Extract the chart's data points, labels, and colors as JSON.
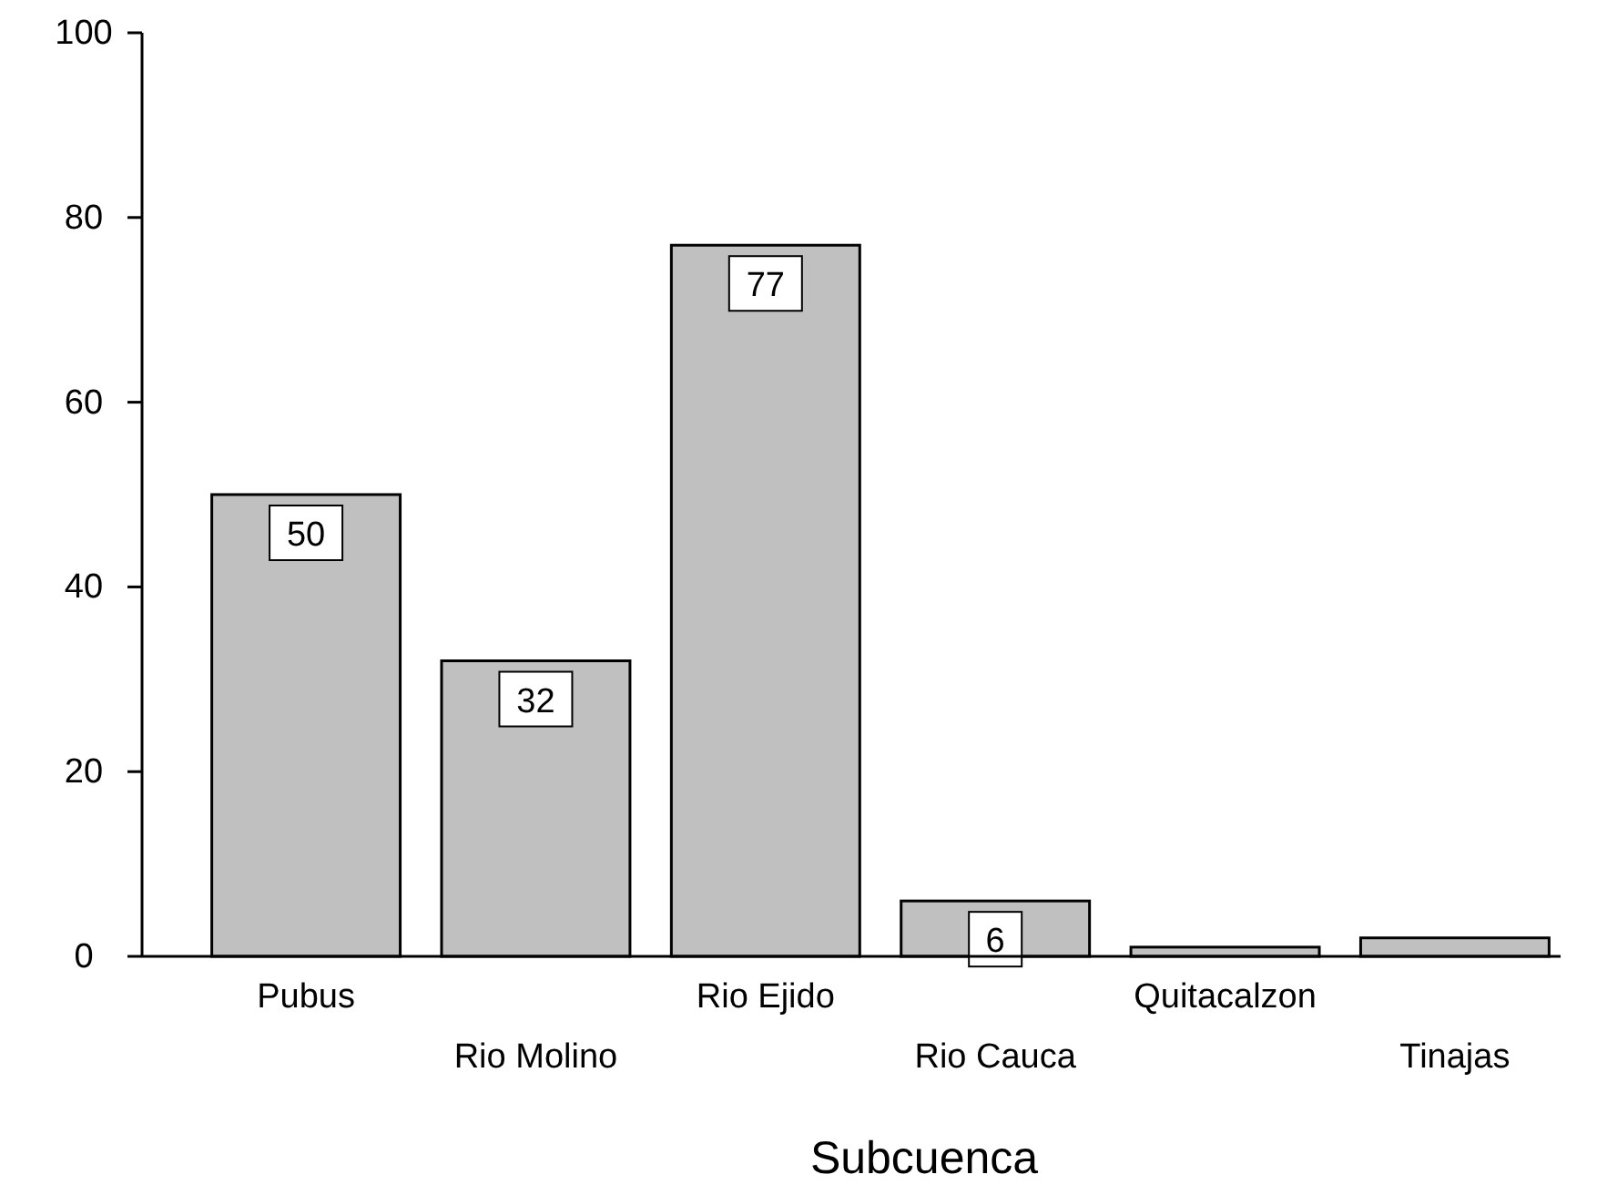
{
  "chart_data": {
    "type": "bar",
    "xlabel": "Subcuenca",
    "categories": [
      "Pubus",
      "Rio Molino",
      "Rio Ejido",
      "Rio Cauca",
      "Quitacalzon",
      "Tinajas"
    ],
    "values": [
      50,
      32,
      77,
      6,
      1,
      2
    ],
    "value_labels": [
      "50",
      "32",
      "77",
      "6",
      null,
      null
    ],
    "color": "#c0c0c0",
    "ylim": [
      0,
      100
    ],
    "yticks": [
      0,
      20,
      40,
      60,
      80,
      100
    ],
    "grid": false
  }
}
